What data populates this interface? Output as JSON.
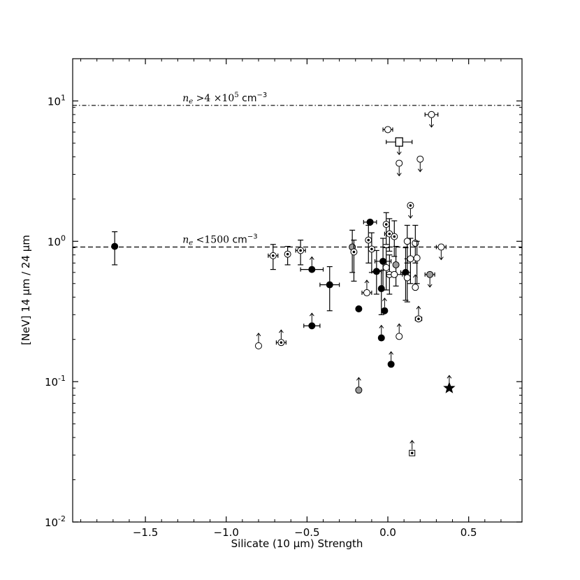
{
  "chart_data": {
    "type": "scatter",
    "title": "",
    "xlabel": "Silicate (10 μm) Strength",
    "ylabel": "[NeV] 14 μm / 24 μm",
    "xlim": [
      -1.95,
      0.83
    ],
    "ylim": [
      0.01,
      20
    ],
    "yscale": "log",
    "grid": false,
    "legend": "none",
    "x_ticks": [
      {
        "value": -1.5,
        "label": "−1.5"
      },
      {
        "value": -1.0,
        "label": "−1.0"
      },
      {
        "value": -0.5,
        "label": "−0.5"
      },
      {
        "value": 0.0,
        "label": "0.0"
      },
      {
        "value": 0.5,
        "label": "0.5"
      }
    ],
    "y_ticks": [
      {
        "value": 0.01,
        "base": "10",
        "exp": "-2"
      },
      {
        "value": 0.1,
        "base": "10",
        "exp": "-1"
      },
      {
        "value": 1,
        "base": "10",
        "exp": "0"
      },
      {
        "value": 10,
        "base": "10",
        "exp": "1"
      }
    ],
    "reference_lines": [
      {
        "y": 9.3,
        "style": "dashdot",
        "label": "n_e >4 ×10^5 cm^-3",
        "label_x": -1.27,
        "label_parts": {
          "n": "n",
          "sub": "e",
          "rel": " >4 ×10",
          "sup": "5",
          "unit": "  cm",
          "unit_sup": "−3"
        }
      },
      {
        "y": 0.91,
        "style": "dashed",
        "label": "n_e <1500 cm^-3",
        "label_x": -1.27,
        "label_parts": {
          "n": "n",
          "sub": "e",
          "rel": " <1500 ",
          "sup": "",
          "unit": "cm",
          "unit_sup": "−3"
        }
      }
    ],
    "colors": {
      "filled": "#000000",
      "gray": "#9a9a9a",
      "open": "#ffffff",
      "edge": "#000000"
    },
    "points": [
      {
        "x": -1.69,
        "y": 0.92,
        "m": "filled",
        "yerr": [
          0.68,
          1.17
        ]
      },
      {
        "x": -0.8,
        "y": 0.18,
        "m": "open",
        "arrow": "up"
      },
      {
        "x": -0.71,
        "y": 0.79,
        "m": "dot",
        "xerr": 0.03,
        "yerr": [
          0.63,
          0.95
        ]
      },
      {
        "x": -0.66,
        "y": 0.19,
        "m": "dot",
        "xerr": 0.03,
        "arrow": "up"
      },
      {
        "x": -0.62,
        "y": 0.81,
        "m": "dot",
        "yerr": [
          0.68,
          0.92
        ]
      },
      {
        "x": -0.54,
        "y": 0.86,
        "m": "dot",
        "xerr": 0.03,
        "yerr": [
          0.68,
          1.02
        ]
      },
      {
        "x": -0.47,
        "y": 0.63,
        "m": "filled",
        "xerr": 0.07,
        "arrow": "up"
      },
      {
        "x": -0.47,
        "y": 0.25,
        "m": "filled",
        "xerr": 0.05,
        "arrow": "up"
      },
      {
        "x": -0.36,
        "y": 0.49,
        "m": "filled",
        "xerr": 0.06,
        "yerr": [
          0.32,
          0.66
        ]
      },
      {
        "x": -0.22,
        "y": 0.91,
        "m": "gray",
        "yerr": [
          0.6,
          1.2
        ]
      },
      {
        "x": -0.21,
        "y": 0.84,
        "m": "dot",
        "yerr": [
          0.52,
          1.02
        ]
      },
      {
        "x": -0.18,
        "y": 0.33,
        "m": "filled"
      },
      {
        "x": -0.18,
        "y": 0.087,
        "m": "gray",
        "arrow": "up"
      },
      {
        "x": -0.13,
        "y": 0.43,
        "m": "open",
        "xerr": 0.03,
        "arrow": "up"
      },
      {
        "x": -0.12,
        "y": 1.02,
        "m": "dot",
        "yerr": [
          0.7,
          1.3
        ]
      },
      {
        "x": -0.11,
        "y": 1.37,
        "m": "filled",
        "xerr": 0.04
      },
      {
        "x": -0.1,
        "y": 0.88,
        "m": "dot",
        "yerr": [
          0.6,
          1.15
        ]
      },
      {
        "x": -0.07,
        "y": 0.61,
        "m": "filled",
        "xerr": 0.03,
        "yerr": [
          0.42,
          0.86
        ]
      },
      {
        "x": -0.04,
        "y": 0.46,
        "m": "filled",
        "yerr": [
          0.3,
          0.62
        ]
      },
      {
        "x": -0.04,
        "y": 0.205,
        "m": "filled",
        "arrow": "up"
      },
      {
        "x": -0.03,
        "y": 0.72,
        "m": "filled",
        "xerr": 0.05,
        "yerr": [
          0.45,
          1.05
        ]
      },
      {
        "x": -0.02,
        "y": 0.32,
        "m": "filled",
        "arrow": "up"
      },
      {
        "x": -0.01,
        "y": 1.32,
        "m": "dot",
        "yerr": [
          0.95,
          1.6
        ]
      },
      {
        "x": 0.0,
        "y": 6.25,
        "m": "open",
        "xerr": 0.03
      },
      {
        "x": -0.01,
        "y": 0.65,
        "m": "open",
        "yerr": [
          0.45,
          0.9
        ]
      },
      {
        "x": 0.01,
        "y": 1.13,
        "m": "dot",
        "xerr": 0.03,
        "yerr": [
          0.85,
          1.45
        ]
      },
      {
        "x": 0.01,
        "y": 0.58,
        "m": "open",
        "yerr": [
          0.42,
          0.8
        ]
      },
      {
        "x": 0.02,
        "y": 0.133,
        "m": "filled",
        "arrow": "up"
      },
      {
        "x": 0.04,
        "y": 1.08,
        "m": "dot",
        "yerr": [
          0.78,
          1.4
        ]
      },
      {
        "x": 0.05,
        "y": 0.68,
        "m": "gray",
        "yerr": [
          0.48,
          0.92
        ]
      },
      {
        "x": 0.04,
        "y": 0.58,
        "m": "open",
        "xerr": 0.05
      },
      {
        "x": 0.07,
        "y": 5.1,
        "m": "square",
        "xerr": 0.08,
        "arrow": "down"
      },
      {
        "x": 0.07,
        "y": 3.6,
        "m": "open",
        "arrow": "down"
      },
      {
        "x": 0.07,
        "y": 0.21,
        "m": "open",
        "arrow": "up"
      },
      {
        "x": 0.11,
        "y": 0.6,
        "m": "filled",
        "xerr": 0.03,
        "yerr": [
          0.38,
          0.9
        ]
      },
      {
        "x": 0.12,
        "y": 1.0,
        "m": "open",
        "yerr": [
          0.7,
          1.3
        ]
      },
      {
        "x": 0.12,
        "y": 0.55,
        "m": "open",
        "yerr": [
          0.37,
          0.75
        ]
      },
      {
        "x": 0.14,
        "y": 1.8,
        "m": "dot",
        "arrow": "down"
      },
      {
        "x": 0.14,
        "y": 0.75,
        "m": "open",
        "yerr": [
          0.5,
          1.05
        ]
      },
      {
        "x": 0.15,
        "y": 0.031,
        "m": "dotsquare",
        "arrow": "up"
      },
      {
        "x": 0.17,
        "y": 0.97,
        "m": "open",
        "yerr": [
          0.7,
          1.3
        ]
      },
      {
        "x": 0.17,
        "y": 0.47,
        "m": "open",
        "arrow": "up"
      },
      {
        "x": 0.18,
        "y": 0.76,
        "m": "open",
        "yerr": [
          0.5,
          1.0
        ]
      },
      {
        "x": 0.19,
        "y": 0.28,
        "m": "dot",
        "xerr": 0.02,
        "arrow": "up"
      },
      {
        "x": 0.2,
        "y": 3.85,
        "m": "open",
        "arrow": "down"
      },
      {
        "x": 0.26,
        "y": 0.58,
        "m": "gray",
        "xerr": 0.03,
        "arrow": "down"
      },
      {
        "x": 0.27,
        "y": 8.0,
        "m": "open",
        "xerr": 0.04,
        "arrow": "down"
      },
      {
        "x": 0.33,
        "y": 0.91,
        "m": "open",
        "xerr": 0.03,
        "arrow": "down"
      },
      {
        "x": 0.38,
        "y": 0.09,
        "m": "star",
        "arrow": "up"
      }
    ]
  }
}
